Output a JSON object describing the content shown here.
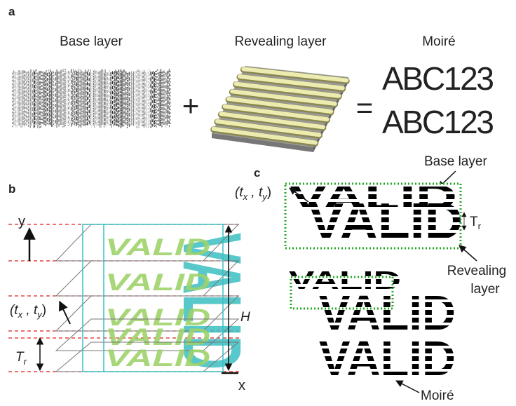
{
  "panel_a": {
    "label": "a",
    "base_layer": "Base layer",
    "revealing_layer": "Revealing layer",
    "moire": "Moiré",
    "plus": "+",
    "equals": "=",
    "moire_text": [
      "ABC123",
      "ABC123"
    ]
  },
  "panel_b": {
    "label": "b",
    "y_axis": "y",
    "x_axis": "x",
    "height": "H",
    "word": "VALID",
    "offset": [
      "(t",
      "x",
      " , t",
      "y",
      ")"
    ],
    "period": [
      "T",
      "r"
    ]
  },
  "panel_c": {
    "label": "c",
    "base_layer": "Base layer",
    "revealing_layer": [
      "Revealing",
      "layer"
    ],
    "moire": "Moiré",
    "word": "VALID",
    "offset": [
      "(t",
      "x",
      " , t",
      "y",
      ")"
    ],
    "period": [
      "T",
      "r"
    ]
  }
}
